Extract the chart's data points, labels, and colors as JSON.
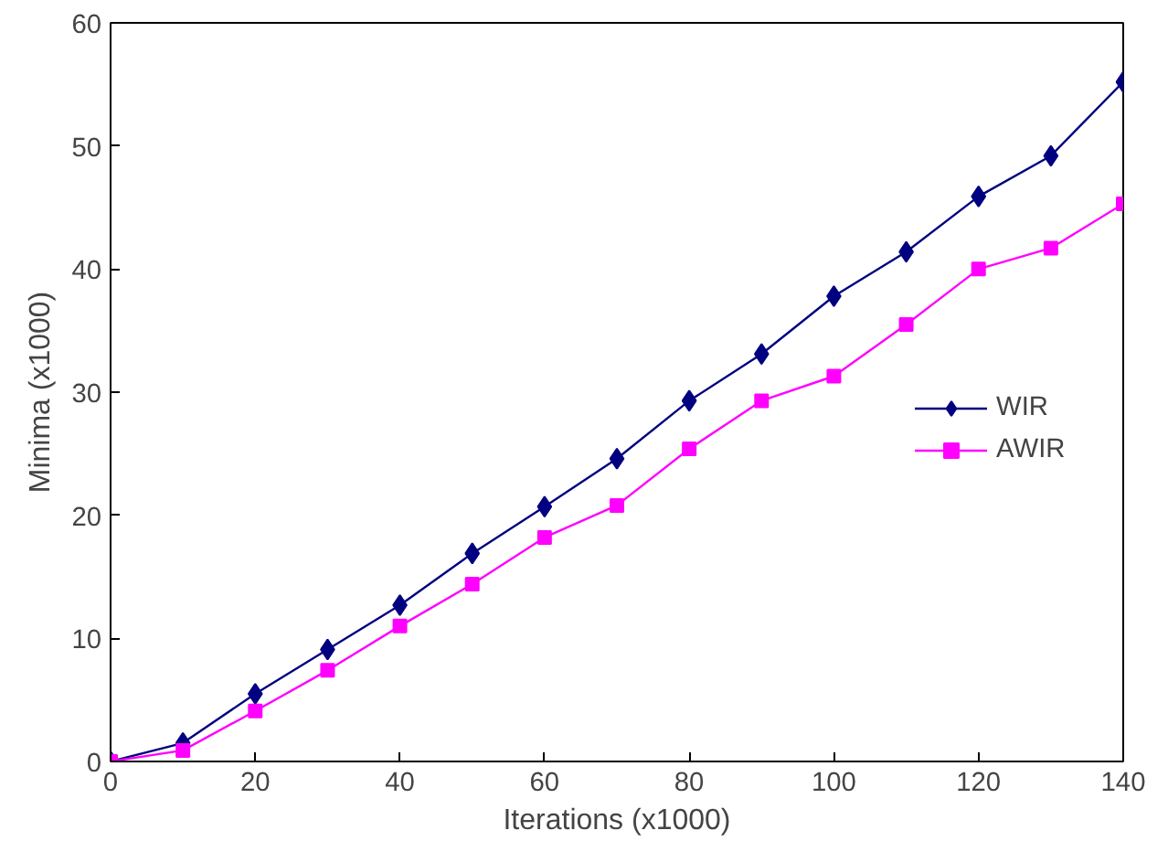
{
  "chart_data": {
    "type": "line",
    "xlabel": "Iterations (x1000)",
    "ylabel": "Minima (x1000)",
    "x": [
      0,
      10,
      20,
      30,
      40,
      50,
      60,
      70,
      80,
      90,
      100,
      110,
      120,
      130,
      140
    ],
    "series": [
      {
        "name": "WIR",
        "color": "#000080",
        "marker": "diamond",
        "values": [
          0,
          1.5,
          5.5,
          9.1,
          12.7,
          16.9,
          20.7,
          24.6,
          29.3,
          33.1,
          37.8,
          41.4,
          45.9,
          49.2,
          55.2
        ]
      },
      {
        "name": "AWIR",
        "color": "#ff00ff",
        "marker": "square",
        "values": [
          0,
          0.9,
          4.1,
          7.4,
          11.0,
          14.4,
          18.2,
          20.8,
          25.4,
          29.3,
          31.3,
          35.5,
          40.0,
          41.7,
          45.3
        ]
      }
    ],
    "xlim": [
      0,
      140
    ],
    "xticks": [
      0,
      20,
      40,
      60,
      80,
      100,
      120,
      140
    ],
    "ylim": [
      0,
      60
    ],
    "yticks": [
      0,
      10,
      20,
      30,
      40,
      50,
      60
    ],
    "grid": false,
    "legend": "right",
    "line_style": "solid"
  }
}
